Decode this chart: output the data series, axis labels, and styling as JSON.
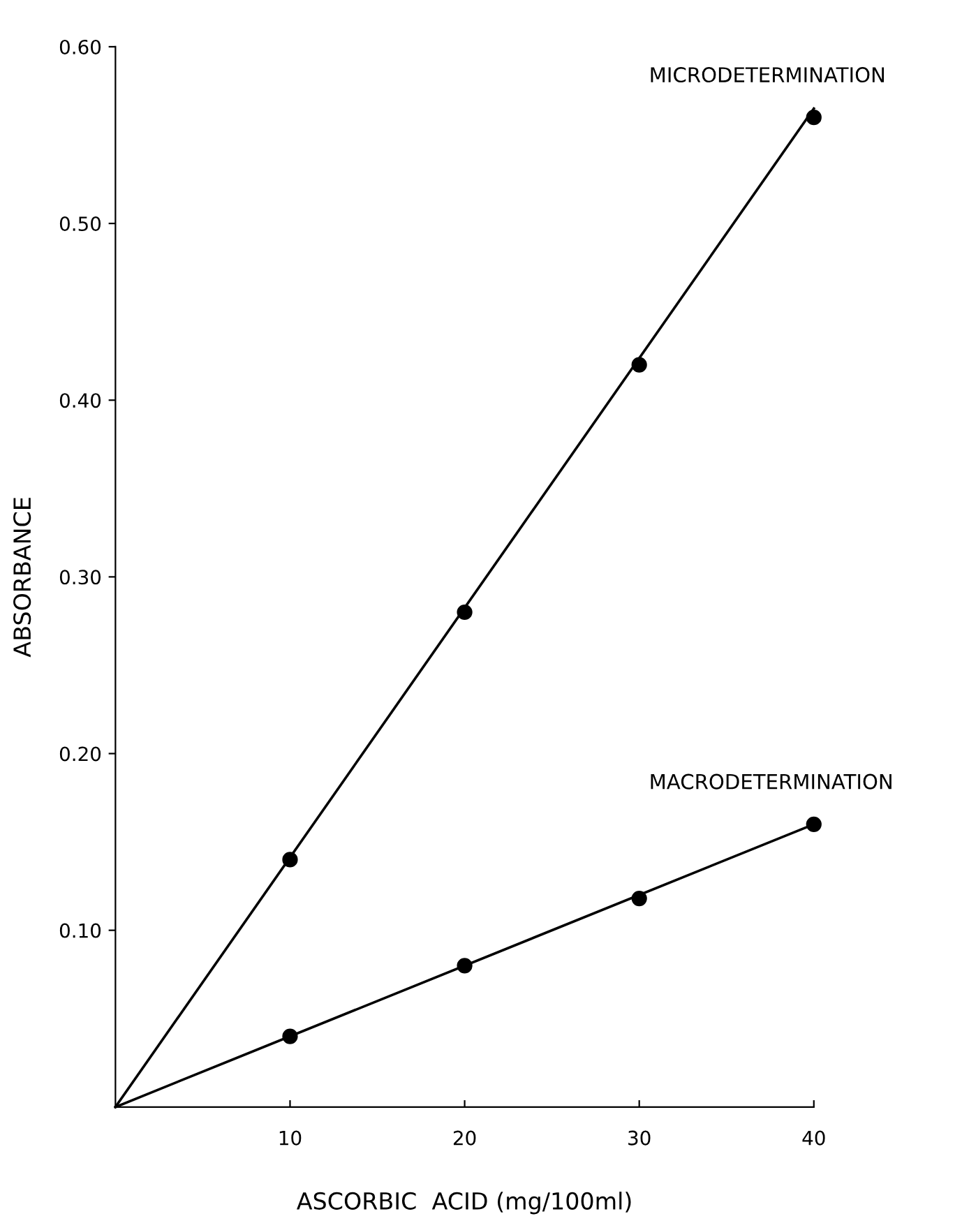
{
  "chart_data": {
    "type": "scatter",
    "xlabel": "ASCORBIC  ACID (mg/100ml)",
    "ylabel": "ABSORBANCE",
    "xlim": [
      0,
      40
    ],
    "ylim": [
      0,
      0.6
    ],
    "xticks": [
      10,
      20,
      30,
      40
    ],
    "yticks": [
      {
        "value": 0.1,
        "label": "0.10"
      },
      {
        "value": 0.2,
        "label": "0.20"
      },
      {
        "value": 0.3,
        "label": "0.30"
      },
      {
        "value": 0.4,
        "label": "0.40"
      },
      {
        "value": 0.5,
        "label": "0.50"
      },
      {
        "value": 0.6,
        "label": "0.60"
      }
    ],
    "grid": false,
    "legend": false,
    "series": [
      {
        "type": "line",
        "marker": "none",
        "color": "#000000",
        "x": [
          0,
          40
        ],
        "values": [
          0,
          0.565
        ]
      },
      {
        "name": "MICRODETERMINATION",
        "marker": "circle",
        "color": "#000000",
        "x": [
          10,
          20,
          30,
          40
        ],
        "values": [
          0.14,
          0.28,
          0.42,
          0.56
        ]
      },
      {
        "type": "line",
        "marker": "none",
        "color": "#000000",
        "x": [
          0,
          40
        ],
        "values": [
          0,
          0.16
        ]
      },
      {
        "name": "MACRODETERMINATION",
        "marker": "circle",
        "color": "#000000",
        "x": [
          10,
          20,
          30,
          40
        ],
        "values": [
          0.04,
          0.08,
          0.118,
          0.16
        ]
      }
    ]
  }
}
